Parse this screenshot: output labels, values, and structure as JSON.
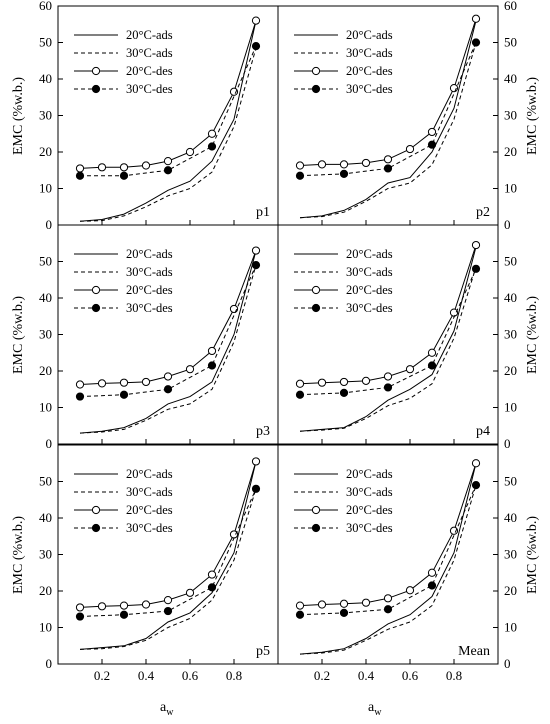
{
  "chart_data": {
    "type": "line",
    "ylabel": "EMC (%w.b.)",
    "xlabel": "a",
    "xlabel_sub": "w",
    "xlim": [
      0,
      1
    ],
    "ylim": [
      0,
      60
    ],
    "x_ticks": [
      "0.2",
      "0.4",
      "0.6",
      "0.8"
    ],
    "y_ticks": [
      "0",
      "10",
      "20",
      "30",
      "40",
      "50",
      "60"
    ],
    "grid": false,
    "legend_position": "top-left",
    "panels": [
      {
        "label": "p1",
        "series": [
          {
            "name": "20°C-ads",
            "x": [
              0.1,
              0.2,
              0.3,
              0.4,
              0.5,
              0.6,
              0.7,
              0.8,
              0.9
            ],
            "y": [
              1.0,
              1.5,
              3.0,
              6.0,
              9.5,
              12.0,
              17.5,
              29.0,
              56.0
            ]
          },
          {
            "name": "30°C-ads",
            "x": [
              0.1,
              0.2,
              0.3,
              0.4,
              0.5,
              0.6,
              0.7,
              0.8,
              0.9
            ],
            "y": [
              1.0,
              1.2,
              2.5,
              5.0,
              8.0,
              10.0,
              14.5,
              27.0,
              48.5
            ]
          },
          {
            "name": "20°C-des",
            "x": [
              0.1,
              0.2,
              0.3,
              0.4,
              0.5,
              0.6,
              0.7,
              0.8,
              0.9
            ],
            "y": [
              15.5,
              15.8,
              15.8,
              16.3,
              17.5,
              20.0,
              25.0,
              36.5,
              56.0
            ]
          },
          {
            "name": "30°C-des",
            "x": [
              0.1,
              0.3,
              0.5,
              0.7,
              0.9
            ],
            "y": [
              13.5,
              13.5,
              15.0,
              21.5,
              49.0
            ]
          }
        ]
      },
      {
        "label": "p2",
        "series": [
          {
            "name": "20°C-ads",
            "x": [
              0.1,
              0.2,
              0.3,
              0.4,
              0.5,
              0.6,
              0.7,
              0.8,
              0.9
            ],
            "y": [
              2.0,
              2.5,
              4.0,
              7.0,
              11.5,
              13.0,
              20.0,
              32.0,
              56.0
            ]
          },
          {
            "name": "30°C-ads",
            "x": [
              0.1,
              0.2,
              0.3,
              0.4,
              0.5,
              0.6,
              0.7,
              0.8,
              0.9
            ],
            "y": [
              2.0,
              2.3,
              3.5,
              6.5,
              10.0,
              11.5,
              16.5,
              29.0,
              50.0
            ]
          },
          {
            "name": "20°C-des",
            "x": [
              0.1,
              0.2,
              0.3,
              0.4,
              0.5,
              0.6,
              0.7,
              0.8,
              0.9
            ],
            "y": [
              16.3,
              16.6,
              16.6,
              17.0,
              18.0,
              20.8,
              25.5,
              37.5,
              56.5
            ]
          },
          {
            "name": "30°C-des",
            "x": [
              0.1,
              0.3,
              0.5,
              0.7,
              0.9
            ],
            "y": [
              13.5,
              14.0,
              15.5,
              22.0,
              50.0
            ]
          }
        ]
      },
      {
        "label": "p3",
        "series": [
          {
            "name": "20°C-ads",
            "x": [
              0.1,
              0.2,
              0.3,
              0.4,
              0.5,
              0.6,
              0.7,
              0.8,
              0.9
            ],
            "y": [
              3.0,
              3.5,
              4.5,
              7.0,
              11.0,
              13.0,
              17.0,
              30.0,
              53.0
            ]
          },
          {
            "name": "30°C-ads",
            "x": [
              0.1,
              0.2,
              0.3,
              0.4,
              0.5,
              0.6,
              0.7,
              0.8,
              0.9
            ],
            "y": [
              3.0,
              3.3,
              4.0,
              6.5,
              9.5,
              11.0,
              15.0,
              28.0,
              49.0
            ]
          },
          {
            "name": "20°C-des",
            "x": [
              0.1,
              0.2,
              0.3,
              0.4,
              0.5,
              0.6,
              0.7,
              0.8,
              0.9
            ],
            "y": [
              16.3,
              16.6,
              16.8,
              17.0,
              18.5,
              20.5,
              25.5,
              37.0,
              53.0
            ]
          },
          {
            "name": "30°C-des",
            "x": [
              0.1,
              0.3,
              0.5,
              0.7,
              0.9
            ],
            "y": [
              13.0,
              13.5,
              15.0,
              21.5,
              49.0
            ]
          }
        ]
      },
      {
        "label": "p4",
        "series": [
          {
            "name": "20°C-ads",
            "x": [
              0.1,
              0.2,
              0.3,
              0.4,
              0.5,
              0.6,
              0.7,
              0.8,
              0.9
            ],
            "y": [
              3.5,
              4.0,
              4.5,
              7.5,
              12.0,
              15.0,
              19.0,
              31.0,
              54.0
            ]
          },
          {
            "name": "30°C-ads",
            "x": [
              0.1,
              0.2,
              0.3,
              0.4,
              0.5,
              0.6,
              0.7,
              0.8,
              0.9
            ],
            "y": [
              3.5,
              3.8,
              4.3,
              7.0,
              10.5,
              12.5,
              16.5,
              29.0,
              48.5
            ]
          },
          {
            "name": "20°C-des",
            "x": [
              0.1,
              0.2,
              0.3,
              0.4,
              0.5,
              0.6,
              0.7,
              0.8,
              0.9
            ],
            "y": [
              16.5,
              16.8,
              17.0,
              17.3,
              18.5,
              20.5,
              25.0,
              36.0,
              54.5
            ]
          },
          {
            "name": "30°C-des",
            "x": [
              0.1,
              0.3,
              0.5,
              0.7,
              0.9
            ],
            "y": [
              13.5,
              14.0,
              15.5,
              21.5,
              48.0
            ]
          }
        ]
      },
      {
        "label": "p5",
        "series": [
          {
            "name": "20°C-ads",
            "x": [
              0.1,
              0.2,
              0.3,
              0.4,
              0.5,
              0.6,
              0.7,
              0.8,
              0.9
            ],
            "y": [
              4.0,
              4.5,
              5.0,
              7.0,
              11.5,
              14.0,
              19.5,
              30.5,
              55.5
            ]
          },
          {
            "name": "30°C-ads",
            "x": [
              0.1,
              0.2,
              0.3,
              0.4,
              0.5,
              0.6,
              0.7,
              0.8,
              0.9
            ],
            "y": [
              4.0,
              4.2,
              4.8,
              6.5,
              10.0,
              12.5,
              17.5,
              28.5,
              48.0
            ]
          },
          {
            "name": "20°C-des",
            "x": [
              0.1,
              0.2,
              0.3,
              0.4,
              0.5,
              0.6,
              0.7,
              0.8,
              0.9
            ],
            "y": [
              15.5,
              15.8,
              16.0,
              16.3,
              17.5,
              19.5,
              24.5,
              35.5,
              55.5
            ]
          },
          {
            "name": "30°C-des",
            "x": [
              0.1,
              0.3,
              0.5,
              0.7,
              0.9
            ],
            "y": [
              13.0,
              13.5,
              14.5,
              21.0,
              48.0
            ]
          }
        ]
      },
      {
        "label": "Mean",
        "series": [
          {
            "name": "20°C-ads",
            "x": [
              0.1,
              0.2,
              0.3,
              0.4,
              0.5,
              0.6,
              0.7,
              0.8,
              0.9
            ],
            "y": [
              2.7,
              3.2,
              4.2,
              7.0,
              11.0,
              13.5,
              18.5,
              30.5,
              55.0
            ]
          },
          {
            "name": "30°C-ads",
            "x": [
              0.1,
              0.2,
              0.3,
              0.4,
              0.5,
              0.6,
              0.7,
              0.8,
              0.9
            ],
            "y": [
              2.7,
              3.0,
              3.8,
              6.5,
              9.5,
              11.5,
              16.0,
              28.5,
              49.0
            ]
          },
          {
            "name": "20°C-des",
            "x": [
              0.1,
              0.2,
              0.3,
              0.4,
              0.5,
              0.6,
              0.7,
              0.8,
              0.9
            ],
            "y": [
              16.0,
              16.3,
              16.5,
              16.8,
              18.0,
              20.2,
              25.0,
              36.5,
              55.0
            ]
          },
          {
            "name": "30°C-des",
            "x": [
              0.1,
              0.3,
              0.5,
              0.7,
              0.9
            ],
            "y": [
              13.5,
              14.0,
              15.0,
              21.5,
              49.0
            ]
          }
        ]
      }
    ]
  }
}
